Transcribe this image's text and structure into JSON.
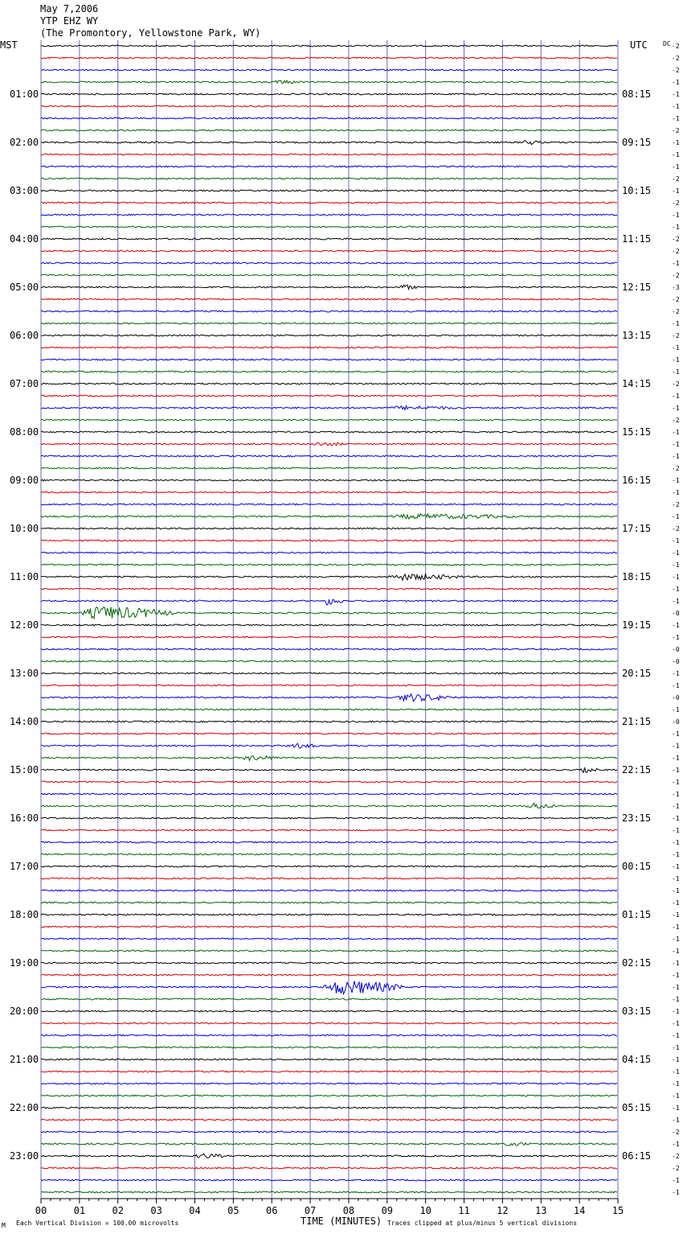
{
  "header": {
    "date": "May 7,2006",
    "station": "YTP EHZ WY",
    "location": "(The Promontory, Yellowstone Park, WY)"
  },
  "left_zone": "MST",
  "right_zone": "UTC",
  "dc_label": "DC",
  "footer": {
    "scale_note": "Each Vertical Division =  100.00 microvolts",
    "xlabel": "TIME (MINUTES)",
    "clip_note": "Traces clipped at plus/minus 5 vertical divisions",
    "corner_mark": "M"
  },
  "colors": {
    "trace_cycle": [
      "#000000",
      "#d40000",
      "#0000d4",
      "#006400"
    ],
    "grid": "#6666cc"
  },
  "chart_data": {
    "type": "line",
    "title": "",
    "xlabel": "TIME (MINUTES)",
    "x_ticks": [
      "00",
      "01",
      "02",
      "03",
      "04",
      "05",
      "06",
      "07",
      "08",
      "09",
      "10",
      "11",
      "12",
      "13",
      "14",
      "15"
    ],
    "xlim": [
      0,
      15
    ],
    "minutes_per_trace": 15,
    "trace_count": 96,
    "left_hour_labels": [
      "01:00",
      "02:00",
      "03:00",
      "04:00",
      "05:00",
      "06:00",
      "07:00",
      "08:00",
      "09:00",
      "10:00",
      "11:00",
      "12:00",
      "13:00",
      "14:00",
      "15:00",
      "16:00",
      "17:00",
      "18:00",
      "19:00",
      "20:00",
      "21:00",
      "22:00",
      "23:00"
    ],
    "right_hour_labels": [
      "08:15",
      "09:15",
      "10:15",
      "11:15",
      "12:15",
      "13:15",
      "14:15",
      "15:15",
      "16:15",
      "17:15",
      "18:15",
      "19:15",
      "20:15",
      "21:15",
      "22:15",
      "23:15",
      "00:15",
      "01:15",
      "02:15",
      "03:15",
      "04:15",
      "05:15",
      "06:15"
    ],
    "dc_offsets": [
      "-2",
      "-2",
      "-2",
      "-1",
      "-1",
      "-1",
      "-1",
      "-2",
      "-1",
      "-1",
      "-1",
      "-2",
      "-1",
      "-2",
      "-1",
      "-1",
      "-2",
      "-2",
      "-1",
      "-2",
      "-3",
      "-2",
      "-2",
      "-1",
      "-2",
      "-1",
      "-1",
      "-1",
      "-2",
      "-1",
      "-1",
      "-2",
      "-1",
      "-1",
      "-1",
      "-2",
      "-1",
      "-1",
      "-2",
      "-1",
      "-2",
      "-1",
      "-1",
      "-1",
      "-1",
      "-1",
      "-1",
      "-0",
      "-1",
      "-1",
      "-0",
      "-0",
      "-1",
      "-1",
      "-0",
      "-1",
      "-0",
      "-1",
      "-1",
      "-1",
      "-1",
      "-1",
      "-1",
      "-1",
      "-1",
      "-1",
      "-1",
      "-1",
      "-1",
      "-1",
      "-1",
      "-1",
      "-1",
      "-1",
      "-1",
      "-1",
      "-1",
      "-1",
      "-1",
      "-1",
      "-1",
      "-1",
      "-1",
      "-1",
      "-1",
      "-1",
      "-1",
      "-1",
      "-1",
      "-1",
      "-2",
      "-1",
      "-2",
      "-2",
      "-1",
      "-1"
    ],
    "events": [
      {
        "trace": 3,
        "start_min": 6.0,
        "end_min": 6.8,
        "amp": 2
      },
      {
        "trace": 8,
        "start_min": 12.5,
        "end_min": 13.0,
        "amp": 3
      },
      {
        "trace": 20,
        "start_min": 9.3,
        "end_min": 9.8,
        "amp": 3
      },
      {
        "trace": 30,
        "start_min": 9.0,
        "end_min": 11.0,
        "amp": 2
      },
      {
        "trace": 33,
        "start_min": 7.0,
        "end_min": 8.0,
        "amp": 2
      },
      {
        "trace": 39,
        "start_min": 9.0,
        "end_min": 12.5,
        "amp": 3
      },
      {
        "trace": 44,
        "start_min": 9.0,
        "end_min": 11.0,
        "amp": 4
      },
      {
        "trace": 46,
        "start_min": 7.3,
        "end_min": 7.9,
        "amp": 5
      },
      {
        "trace": 47,
        "start_min": 1.0,
        "end_min": 3.5,
        "amp": 9
      },
      {
        "trace": 54,
        "start_min": 9.2,
        "end_min": 10.8,
        "amp": 5
      },
      {
        "trace": 58,
        "start_min": 6.5,
        "end_min": 7.2,
        "amp": 3
      },
      {
        "trace": 59,
        "start_min": 5.2,
        "end_min": 6.2,
        "amp": 3
      },
      {
        "trace": 60,
        "start_min": 14.0,
        "end_min": 14.5,
        "amp": 3
      },
      {
        "trace": 63,
        "start_min": 12.6,
        "end_min": 13.4,
        "amp": 4
      },
      {
        "trace": 78,
        "start_min": 7.3,
        "end_min": 9.5,
        "amp": 10
      },
      {
        "trace": 91,
        "start_min": 12.0,
        "end_min": 12.8,
        "amp": 2
      },
      {
        "trace": 92,
        "start_min": 4.0,
        "end_min": 4.8,
        "amp": 3
      }
    ]
  }
}
